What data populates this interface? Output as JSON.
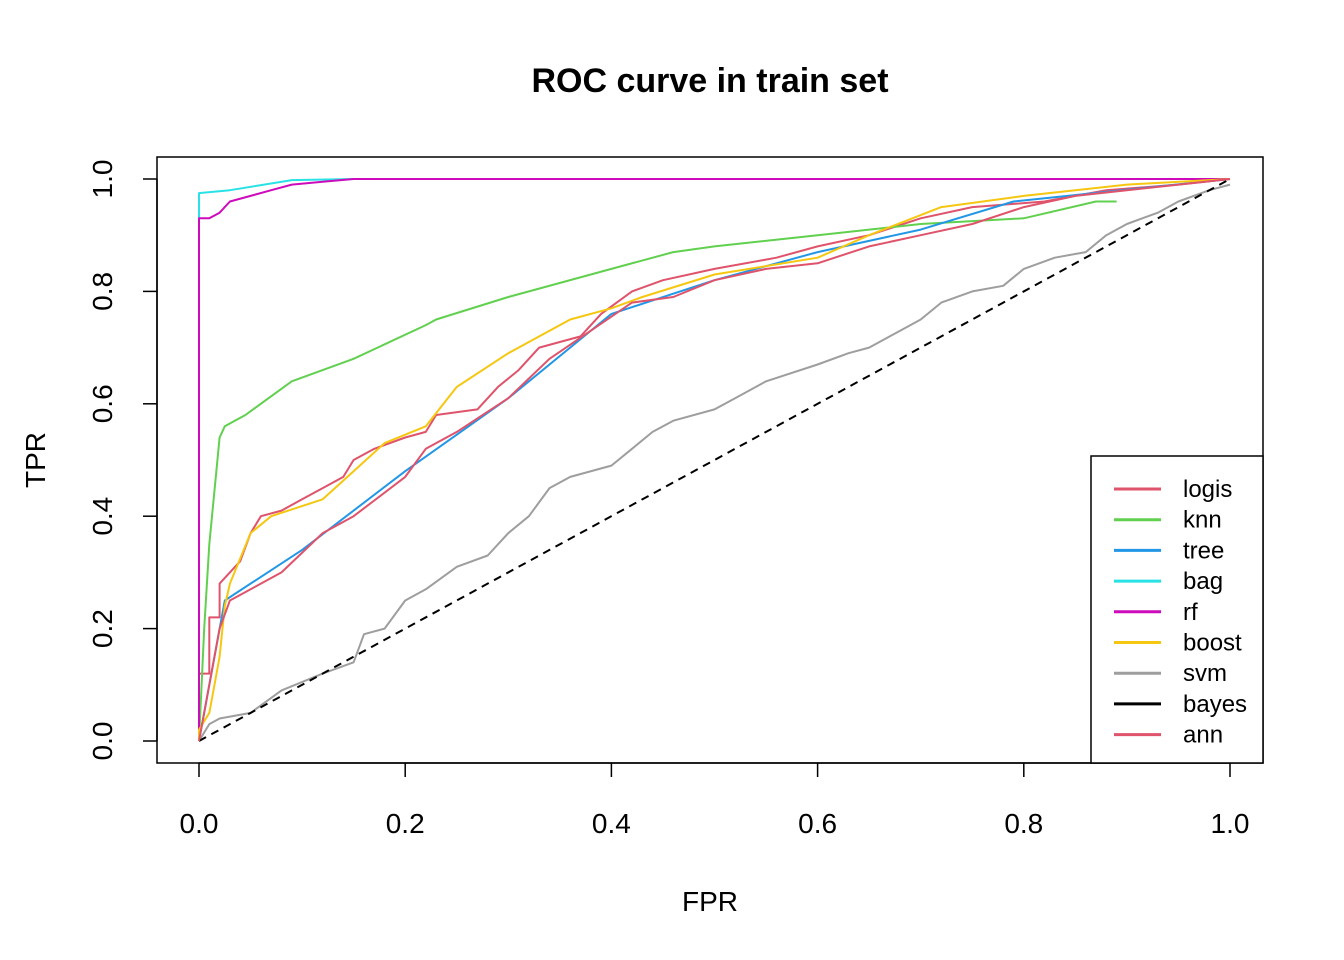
{
  "chart_data": {
    "type": "line",
    "title": "ROC curve in train set",
    "xlabel": "FPR",
    "ylabel": "TPR",
    "xlim": [
      0.0,
      1.0
    ],
    "ylim": [
      0.0,
      1.0
    ],
    "x_ticks": [
      "0.0",
      "0.2",
      "0.4",
      "0.6",
      "0.8",
      "1.0"
    ],
    "y_ticks": [
      "0.0",
      "0.2",
      "0.4",
      "0.6",
      "0.8",
      "1.0"
    ],
    "grid": false,
    "legend_position": "bottom-right",
    "series": [
      {
        "name": "logis",
        "color": "#DF536B",
        "dash": false,
        "points": [
          [
            0,
            0
          ],
          [
            0,
            0.12
          ],
          [
            0.01,
            0.12
          ],
          [
            0.01,
            0.22
          ],
          [
            0.02,
            0.22
          ],
          [
            0.02,
            0.28
          ],
          [
            0.03,
            0.3
          ],
          [
            0.04,
            0.32
          ],
          [
            0.05,
            0.37
          ],
          [
            0.06,
            0.4
          ],
          [
            0.08,
            0.41
          ],
          [
            0.1,
            0.43
          ],
          [
            0.12,
            0.45
          ],
          [
            0.14,
            0.47
          ],
          [
            0.15,
            0.5
          ],
          [
            0.17,
            0.52
          ],
          [
            0.2,
            0.54
          ],
          [
            0.22,
            0.55
          ],
          [
            0.23,
            0.58
          ],
          [
            0.27,
            0.59
          ],
          [
            0.29,
            0.63
          ],
          [
            0.31,
            0.66
          ],
          [
            0.33,
            0.7
          ],
          [
            0.35,
            0.71
          ],
          [
            0.37,
            0.72
          ],
          [
            0.39,
            0.76
          ],
          [
            0.42,
            0.8
          ],
          [
            0.45,
            0.82
          ],
          [
            0.5,
            0.84
          ],
          [
            0.56,
            0.86
          ],
          [
            0.6,
            0.88
          ],
          [
            0.65,
            0.9
          ],
          [
            0.7,
            0.93
          ],
          [
            0.75,
            0.95
          ],
          [
            0.82,
            0.96
          ],
          [
            0.88,
            0.98
          ],
          [
            0.95,
            0.99
          ],
          [
            1,
            1
          ]
        ]
      },
      {
        "name": "knn",
        "color": "#61D04F",
        "dash": false,
        "points": [
          [
            0,
            0
          ],
          [
            0.005,
            0.2
          ],
          [
            0.01,
            0.35
          ],
          [
            0.02,
            0.54
          ],
          [
            0.025,
            0.56
          ],
          [
            0.045,
            0.58
          ],
          [
            0.09,
            0.64
          ],
          [
            0.15,
            0.68
          ],
          [
            0.22,
            0.74
          ],
          [
            0.23,
            0.75
          ],
          [
            0.3,
            0.79
          ],
          [
            0.4,
            0.84
          ],
          [
            0.46,
            0.87
          ],
          [
            0.5,
            0.88
          ],
          [
            0.6,
            0.9
          ],
          [
            0.7,
            0.92
          ],
          [
            0.8,
            0.93
          ],
          [
            0.87,
            0.96
          ],
          [
            0.89,
            0.96
          ]
        ]
      },
      {
        "name": "tree",
        "color": "#2297E6",
        "dash": false,
        "points": [
          [
            0,
            0
          ],
          [
            0.025,
            0.25
          ],
          [
            0.1,
            0.34
          ],
          [
            0.2,
            0.48
          ],
          [
            0.3,
            0.61
          ],
          [
            0.4,
            0.76
          ],
          [
            0.5,
            0.82
          ],
          [
            0.6,
            0.87
          ],
          [
            0.7,
            0.91
          ],
          [
            0.79,
            0.96
          ],
          [
            1,
            1
          ]
        ]
      },
      {
        "name": "bag",
        "color": "#28E2E5",
        "dash": false,
        "points": [
          [
            0,
            0
          ],
          [
            0,
            0.975
          ],
          [
            0.03,
            0.98
          ],
          [
            0.09,
            0.998
          ],
          [
            0.15,
            1
          ],
          [
            1,
            1
          ]
        ]
      },
      {
        "name": "rf",
        "color": "#CD0BBC",
        "dash": false,
        "points": [
          [
            0,
            0
          ],
          [
            0,
            0.93
          ],
          [
            0.01,
            0.93
          ],
          [
            0.02,
            0.94
          ],
          [
            0.03,
            0.96
          ],
          [
            0.05,
            0.97
          ],
          [
            0.07,
            0.98
          ],
          [
            0.09,
            0.99
          ],
          [
            0.12,
            0.995
          ],
          [
            0.15,
            1
          ],
          [
            0.55,
            1
          ],
          [
            1,
            1
          ]
        ]
      },
      {
        "name": "boost",
        "color": "#F5C710",
        "dash": false,
        "points": [
          [
            0,
            0
          ],
          [
            0,
            0.02
          ],
          [
            0.01,
            0.05
          ],
          [
            0.015,
            0.1
          ],
          [
            0.02,
            0.15
          ],
          [
            0.025,
            0.24
          ],
          [
            0.03,
            0.28
          ],
          [
            0.05,
            0.37
          ],
          [
            0.07,
            0.4
          ],
          [
            0.12,
            0.43
          ],
          [
            0.15,
            0.48
          ],
          [
            0.18,
            0.53
          ],
          [
            0.22,
            0.56
          ],
          [
            0.25,
            0.63
          ],
          [
            0.3,
            0.69
          ],
          [
            0.33,
            0.72
          ],
          [
            0.36,
            0.75
          ],
          [
            0.4,
            0.77
          ],
          [
            0.43,
            0.79
          ],
          [
            0.5,
            0.83
          ],
          [
            0.6,
            0.86
          ],
          [
            0.65,
            0.9
          ],
          [
            0.72,
            0.95
          ],
          [
            0.8,
            0.97
          ],
          [
            0.9,
            0.99
          ],
          [
            1,
            1
          ]
        ]
      },
      {
        "name": "svm",
        "color": "#9E9E9E",
        "dash": false,
        "points": [
          [
            0,
            0
          ],
          [
            0.01,
            0.03
          ],
          [
            0.02,
            0.04
          ],
          [
            0.05,
            0.05
          ],
          [
            0.08,
            0.09
          ],
          [
            0.12,
            0.12
          ],
          [
            0.15,
            0.14
          ],
          [
            0.16,
            0.19
          ],
          [
            0.18,
            0.2
          ],
          [
            0.2,
            0.25
          ],
          [
            0.22,
            0.27
          ],
          [
            0.25,
            0.31
          ],
          [
            0.28,
            0.33
          ],
          [
            0.3,
            0.37
          ],
          [
            0.32,
            0.4
          ],
          [
            0.34,
            0.45
          ],
          [
            0.36,
            0.47
          ],
          [
            0.4,
            0.49
          ],
          [
            0.42,
            0.52
          ],
          [
            0.44,
            0.55
          ],
          [
            0.46,
            0.57
          ],
          [
            0.5,
            0.59
          ],
          [
            0.52,
            0.61
          ],
          [
            0.55,
            0.64
          ],
          [
            0.6,
            0.67
          ],
          [
            0.63,
            0.69
          ],
          [
            0.65,
            0.7
          ],
          [
            0.68,
            0.73
          ],
          [
            0.7,
            0.75
          ],
          [
            0.72,
            0.78
          ],
          [
            0.75,
            0.8
          ],
          [
            0.78,
            0.81
          ],
          [
            0.8,
            0.84
          ],
          [
            0.83,
            0.86
          ],
          [
            0.86,
            0.87
          ],
          [
            0.88,
            0.9
          ],
          [
            0.9,
            0.92
          ],
          [
            0.93,
            0.94
          ],
          [
            0.95,
            0.96
          ],
          [
            0.98,
            0.98
          ],
          [
            1,
            0.99
          ]
        ]
      },
      {
        "name": "bayes",
        "color": "#000000",
        "dash": true,
        "points": [
          [
            0,
            0
          ],
          [
            1,
            1
          ]
        ]
      },
      {
        "name": "ann",
        "color": "#DF536B",
        "dash": false,
        "points": [
          [
            0,
            0
          ],
          [
            0.02,
            0.2
          ],
          [
            0.03,
            0.25
          ],
          [
            0.08,
            0.3
          ],
          [
            0.12,
            0.37
          ],
          [
            0.15,
            0.4
          ],
          [
            0.2,
            0.47
          ],
          [
            0.22,
            0.52
          ],
          [
            0.25,
            0.55
          ],
          [
            0.3,
            0.61
          ],
          [
            0.34,
            0.68
          ],
          [
            0.38,
            0.73
          ],
          [
            0.42,
            0.78
          ],
          [
            0.46,
            0.79
          ],
          [
            0.5,
            0.82
          ],
          [
            0.55,
            0.84
          ],
          [
            0.6,
            0.85
          ],
          [
            0.65,
            0.88
          ],
          [
            0.7,
            0.9
          ],
          [
            0.75,
            0.92
          ],
          [
            0.8,
            0.95
          ],
          [
            0.85,
            0.97
          ],
          [
            0.9,
            0.98
          ],
          [
            1,
            1
          ]
        ]
      }
    ]
  }
}
